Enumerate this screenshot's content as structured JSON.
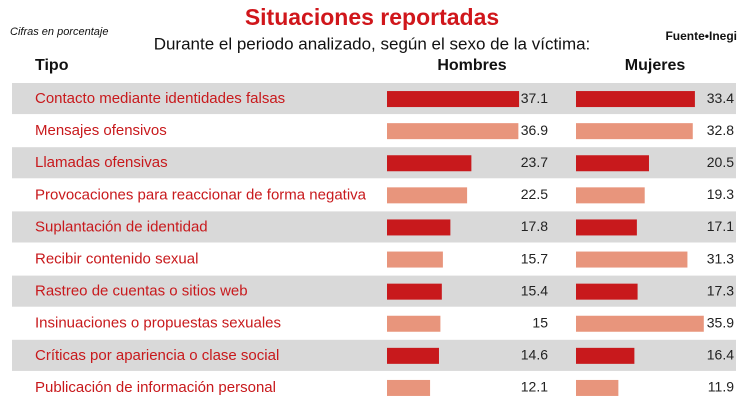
{
  "chart_data": {
    "type": "bar",
    "title": "Situaciones reportadas",
    "subtitle": "Durante el periodo analizado, según el sexo de la víctima:",
    "note": "Cifras en porcentaje",
    "source": "Fuente•Inegi",
    "category_header": "Tipo",
    "categories": [
      "Contacto mediante identidades falsas",
      "Mensajes ofensivos",
      "Llamadas ofensivas",
      "Provocaciones para reaccionar de forma negativa",
      "Suplantación de identidad",
      "Recibir contenido sexual",
      "Rastreo de cuentas o sitios web",
      "Insinuaciones o propuestas sexuales",
      "Críticas por apariencia o clase social",
      "Publicación de información personal"
    ],
    "series": [
      {
        "name": "Hombres",
        "values": [
          37.1,
          36.9,
          23.7,
          22.5,
          17.8,
          15.7,
          15.4,
          15,
          14.6,
          12.1
        ]
      },
      {
        "name": "Mujeres",
        "values": [
          33.4,
          32.8,
          20.5,
          19.3,
          17.1,
          31.3,
          17.3,
          35.9,
          16.4,
          11.9
        ]
      }
    ],
    "row_colors": [
      "#c8191c",
      "#e8957c"
    ],
    "stripe_color": "#d9d9d9"
  }
}
